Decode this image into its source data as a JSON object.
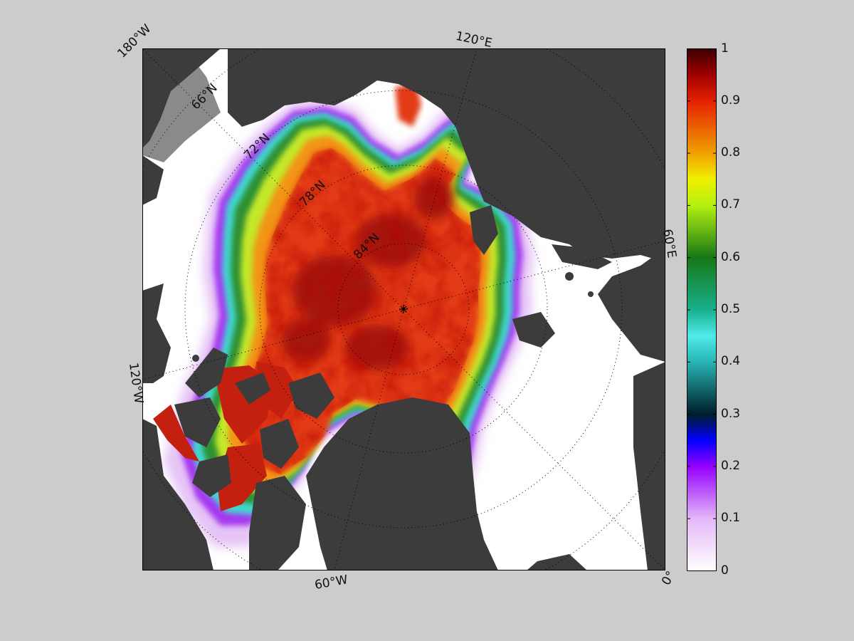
{
  "map": {
    "projection": "north-polar-stereographic",
    "colors": {
      "figure_background": "#cccccc",
      "ocean_open_water": "#ffffff",
      "land": "#3c3c3c",
      "land_mask_grey": "#8a8a8a",
      "graticule": "#000000"
    },
    "meridian_labels": [
      "180°W",
      "120°E",
      "60°E",
      "0°",
      "60°W",
      "120°W"
    ],
    "parallel_labels": [
      "66°N",
      "72°N",
      "78°N",
      "84°N"
    ],
    "pole_marker": "asterisk"
  },
  "colorbar": {
    "min": 0,
    "max": 1,
    "tick_labels": [
      "1",
      "0.9",
      "0.8",
      "0.7",
      "0.6",
      "0.5",
      "0.4",
      "0.3",
      "0.2",
      "0.1",
      "0"
    ],
    "colormap_stops": [
      {
        "value": 0.0,
        "color": "#ffffff"
      },
      {
        "value": 0.1,
        "color": "#e3b8f8"
      },
      {
        "value": 0.2,
        "color": "#9400ff"
      },
      {
        "value": 0.25,
        "color": "#0000ff"
      },
      {
        "value": 0.3,
        "color": "#001e2a"
      },
      {
        "value": 0.4,
        "color": "#28b4b4"
      },
      {
        "value": 0.45,
        "color": "#50ebeb"
      },
      {
        "value": 0.5,
        "color": "#18b08c"
      },
      {
        "value": 0.6,
        "color": "#167816"
      },
      {
        "value": 0.7,
        "color": "#b4f010"
      },
      {
        "value": 0.75,
        "color": "#f0f000"
      },
      {
        "value": 0.8,
        "color": "#f0a000"
      },
      {
        "value": 0.9,
        "color": "#e42000"
      },
      {
        "value": 0.95,
        "color": "#a00000"
      },
      {
        "value": 1.0,
        "color": "#3c0000"
      }
    ]
  }
}
